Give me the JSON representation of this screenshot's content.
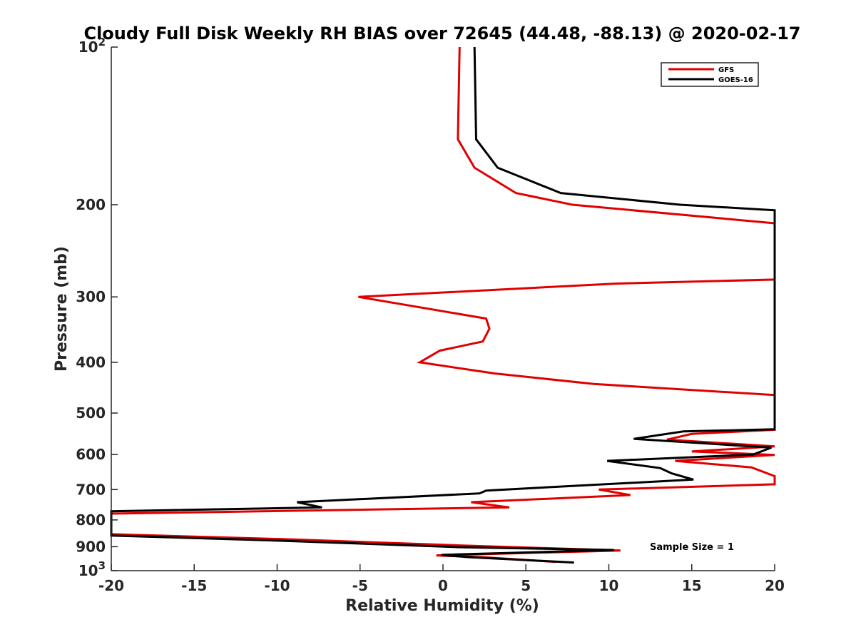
{
  "chart_data": {
    "type": "line",
    "title": "Cloudy Full Disk Weekly RH BIAS over 72645 (44.48, -88.13) @ 2020-02-17",
    "xlabel": "Relative Humidity (%)",
    "ylabel": "Pressure (mb)",
    "xlim": [
      -20,
      20
    ],
    "ylim": [
      100,
      1000
    ],
    "y_scale": "log",
    "y_reversed": true,
    "x_ticks": [
      "-20",
      "-15",
      "-10",
      "-5",
      "0",
      "5",
      "10",
      "15",
      "20"
    ],
    "y_ticks": [
      {
        "value": 100,
        "label": "10",
        "sup": "2"
      },
      {
        "value": 200,
        "label": "200",
        "sup": ""
      },
      {
        "value": 300,
        "label": "300",
        "sup": ""
      },
      {
        "value": 400,
        "label": "400",
        "sup": ""
      },
      {
        "value": 500,
        "label": "500",
        "sup": ""
      },
      {
        "value": 600,
        "label": "600",
        "sup": ""
      },
      {
        "value": 700,
        "label": "700",
        "sup": ""
      },
      {
        "value": 800,
        "label": "800",
        "sup": ""
      },
      {
        "value": 900,
        "label": "900",
        "sup": ""
      },
      {
        "value": 1000,
        "label": "10",
        "sup": "3"
      }
    ],
    "grid": false,
    "legend_position": "top-right",
    "annotation": "Sample Size = 1",
    "series": [
      {
        "name": "GFS",
        "color": "#e00000",
        "points": [
          [
            1.0,
            100
          ],
          [
            0.9,
            150
          ],
          [
            1.9,
            170
          ],
          [
            4.4,
            190
          ],
          [
            7.8,
            200
          ],
          [
            20.2,
            217
          ],
          [
            20.4,
            278
          ],
          [
            10.4,
            283
          ],
          [
            -5.1,
            300
          ],
          [
            2.6,
            330
          ],
          [
            2.8,
            345
          ],
          [
            2.4,
            365
          ],
          [
            -0.2,
            380
          ],
          [
            -1.4,
            400
          ],
          [
            3.1,
            420
          ],
          [
            9.1,
            440
          ],
          [
            20.2,
            462
          ],
          [
            20.2,
            538
          ],
          [
            15.0,
            548
          ],
          [
            13.5,
            562
          ],
          [
            20.2,
            579
          ],
          [
            15.0,
            592
          ],
          [
            20.2,
            601
          ],
          [
            14.0,
            617
          ],
          [
            18.6,
            635
          ],
          [
            20.2,
            660
          ],
          [
            20.2,
            684
          ],
          [
            9.4,
            700
          ],
          [
            11.3,
            717
          ],
          [
            1.7,
            740
          ],
          [
            4.0,
            757
          ],
          [
            -20.2,
            778
          ],
          [
            -20.2,
            852
          ],
          [
            -9.0,
            872
          ],
          [
            1.0,
            895
          ],
          [
            10.7,
            915
          ],
          [
            -0.4,
            935
          ],
          [
            2.5,
            943
          ],
          [
            6.8,
            962
          ]
        ]
      },
      {
        "name": "GOES-16",
        "color": "#000000",
        "points": [
          [
            1.9,
            100
          ],
          [
            2.0,
            150
          ],
          [
            3.3,
            170
          ],
          [
            7.1,
            190
          ],
          [
            14.3,
            200
          ],
          [
            20.2,
            205
          ],
          [
            20.2,
            537
          ],
          [
            14.5,
            542
          ],
          [
            11.5,
            560
          ],
          [
            19.8,
            582
          ],
          [
            18.7,
            600
          ],
          [
            9.9,
            617
          ],
          [
            13.1,
            637
          ],
          [
            13.8,
            652
          ],
          [
            15.1,
            670
          ],
          [
            2.6,
            703
          ],
          [
            2.2,
            712
          ],
          [
            -8.8,
            740
          ],
          [
            -7.3,
            757
          ],
          [
            -20.2,
            770
          ],
          [
            -20.2,
            857
          ],
          [
            -9.5,
            877
          ],
          [
            1.0,
            902
          ],
          [
            10.3,
            913
          ],
          [
            -0.1,
            933
          ],
          [
            1.5,
            942
          ],
          [
            7.9,
            965
          ]
        ]
      }
    ]
  }
}
